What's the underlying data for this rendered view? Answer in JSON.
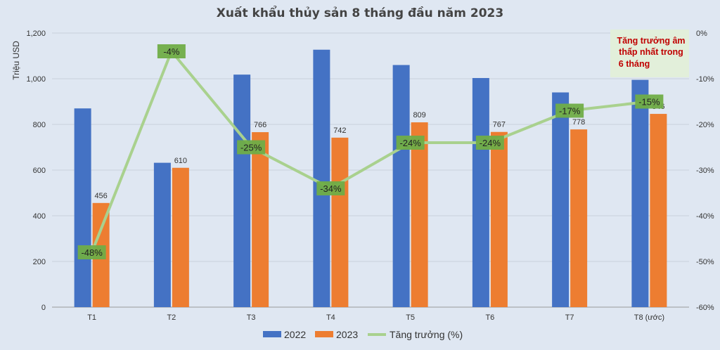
{
  "chart_data": {
    "type": "bar",
    "title": "Xuất khẩu thủy sản 8 tháng đầu năm 2023",
    "categories": [
      "T1",
      "T2",
      "T3",
      "T4",
      "T5",
      "T6",
      "T7",
      "T8 (ước)"
    ],
    "series": [
      {
        "name": "2022",
        "type": "bar",
        "axis": "left",
        "color": "#4472c4",
        "values": [
          870,
          632,
          1018,
          1127,
          1060,
          1003,
          940,
          995
        ]
      },
      {
        "name": "2023",
        "type": "bar",
        "axis": "left",
        "color": "#ed7d31",
        "values": [
          456,
          610,
          766,
          742,
          809,
          767,
          778,
          846
        ]
      },
      {
        "name": "Tăng trưởng (%)",
        "type": "line",
        "axis": "right",
        "color": "#a9d18e",
        "values": [
          -48,
          -4,
          -25,
          -34,
          -24,
          -24,
          -17,
          -15
        ],
        "labels": [
          "-48%",
          "-4%",
          "-25%",
          "-34%",
          "-24%",
          "-24%",
          "-17%",
          "-15%"
        ]
      }
    ],
    "bar_labels": [
      "456",
      "610",
      "766",
      "742",
      "809",
      "767",
      "778",
      "846"
    ],
    "ylabel": "Triệu USD",
    "ylim": [
      0,
      1200
    ],
    "y_ticks": [
      "0",
      "200",
      "400",
      "600",
      "800",
      "1,000",
      "1,200"
    ],
    "y2lim": [
      -60,
      0
    ],
    "y2_ticks": [
      "-60%",
      "-50%",
      "-40%",
      "-30%",
      "-20%",
      "-10%",
      "0%"
    ],
    "grid": true,
    "legend": "bottom",
    "annotation": {
      "lines": [
        "Tăng trưởng âm",
        "thấp nhất trong",
        "6 tháng"
      ],
      "color": "#c00000",
      "background": "#e2efda"
    }
  }
}
